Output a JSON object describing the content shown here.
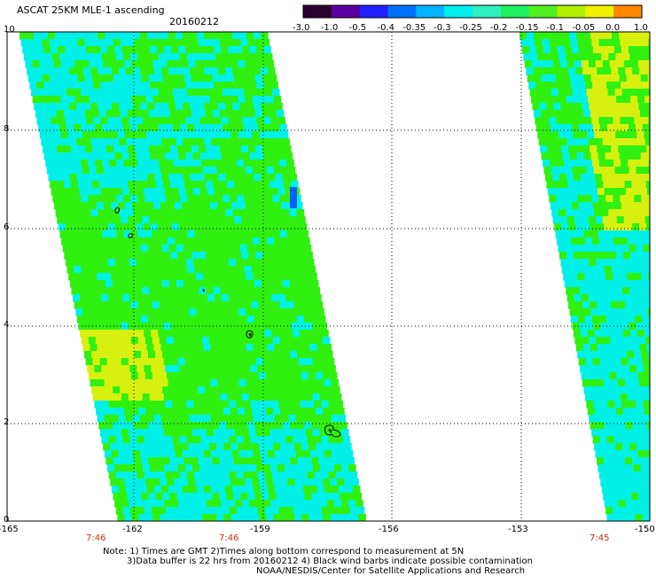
{
  "header": {
    "title": "ASCAT 25KM MLE-1 ascending",
    "date": "20160212"
  },
  "colorbar": {
    "labels": [
      "-3.0",
      "-1.0",
      "-0.5",
      "-0.4",
      "-0.35",
      "-0.3",
      "-0.25",
      "-0.2",
      "-0.15",
      "-0.1",
      "-0.05",
      "0.0",
      "1.0"
    ],
    "colors": [
      "#2a0030",
      "#5a00a0",
      "#2020ff",
      "#0070ff",
      "#00b4ff",
      "#00eeee",
      "#30f0c0",
      "#20f060",
      "#50f020",
      "#b0f000",
      "#f0f000",
      "#ff8800",
      "#ff2000"
    ]
  },
  "axes": {
    "y_ticks": [
      "0",
      "2",
      "4",
      "6",
      "8",
      "10"
    ],
    "x_ticks": [
      "-165",
      "-162",
      "-159",
      "-156",
      "-153",
      "-150"
    ],
    "time_labels": [
      "7:46",
      "7:46",
      "7:45"
    ]
  },
  "notes": {
    "line1": "Note: 1) Times are GMT 2)Times along bottom correspond to measurement at 5N",
    "line2": "3)Data buffer is 22 hrs from 20160212 4) Black wind barbs indicate possible contamination",
    "line3": "NOAA/NESDIS/Center for Satellite Applications and Research"
  },
  "legend_colors": {
    "cyan": "#00f0e8",
    "green": "#30f010",
    "yellow": "#d8f010",
    "blue": "#0060ff"
  }
}
